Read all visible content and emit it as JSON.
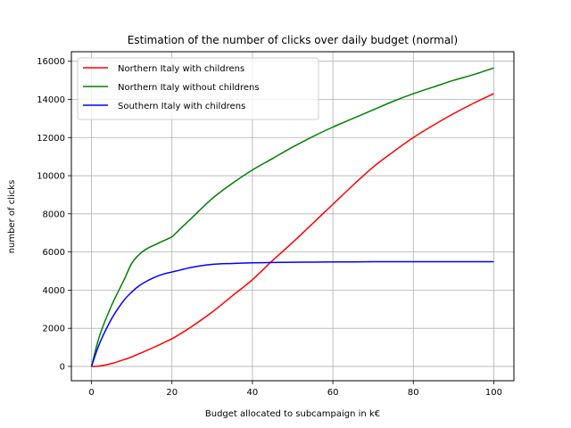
{
  "chart_data": {
    "type": "line",
    "title": "Estimation of the number of clicks over daily budget (normal)",
    "xlabel": "Budget allocated to subcampaign in k€",
    "ylabel": "number of clicks",
    "xlim": [
      -5,
      105
    ],
    "ylim": [
      -750,
      16500
    ],
    "xticks": [
      0,
      20,
      40,
      60,
      80,
      100
    ],
    "yticks": [
      0,
      2000,
      4000,
      6000,
      8000,
      10000,
      12000,
      14000,
      16000
    ],
    "grid": true,
    "legend_position": "top-left",
    "x": [
      0,
      2,
      5,
      8,
      10,
      12,
      14,
      16,
      18,
      20,
      22,
      25,
      30,
      35,
      40,
      45,
      50,
      55,
      60,
      65,
      70,
      75,
      80,
      85,
      90,
      95,
      100
    ],
    "series": [
      {
        "name": "Northern Italy with childrens",
        "color": "#ff0000",
        "values": [
          0,
          20,
          150,
          350,
          500,
          680,
          860,
          1050,
          1250,
          1450,
          1700,
          2100,
          2850,
          3700,
          4550,
          5550,
          6500,
          7500,
          8500,
          9500,
          10450,
          11250,
          12000,
          12650,
          13250,
          13800,
          14300
        ]
      },
      {
        "name": "Northern Italy without childrens",
        "color": "#008000",
        "values": [
          0,
          1600,
          3200,
          4500,
          5400,
          5900,
          6200,
          6400,
          6600,
          6800,
          7200,
          7800,
          8800,
          9600,
          10300,
          10900,
          11500,
          12050,
          12550,
          13000,
          13450,
          13900,
          14300,
          14650,
          15000,
          15300,
          15650
        ]
      },
      {
        "name": "Southern Italy with childrens",
        "color": "#0000ff",
        "values": [
          0,
          1200,
          2500,
          3450,
          3900,
          4250,
          4500,
          4700,
          4850,
          4950,
          5050,
          5200,
          5350,
          5400,
          5430,
          5450,
          5460,
          5470,
          5480,
          5480,
          5490,
          5490,
          5490,
          5490,
          5490,
          5490,
          5490
        ]
      }
    ]
  }
}
